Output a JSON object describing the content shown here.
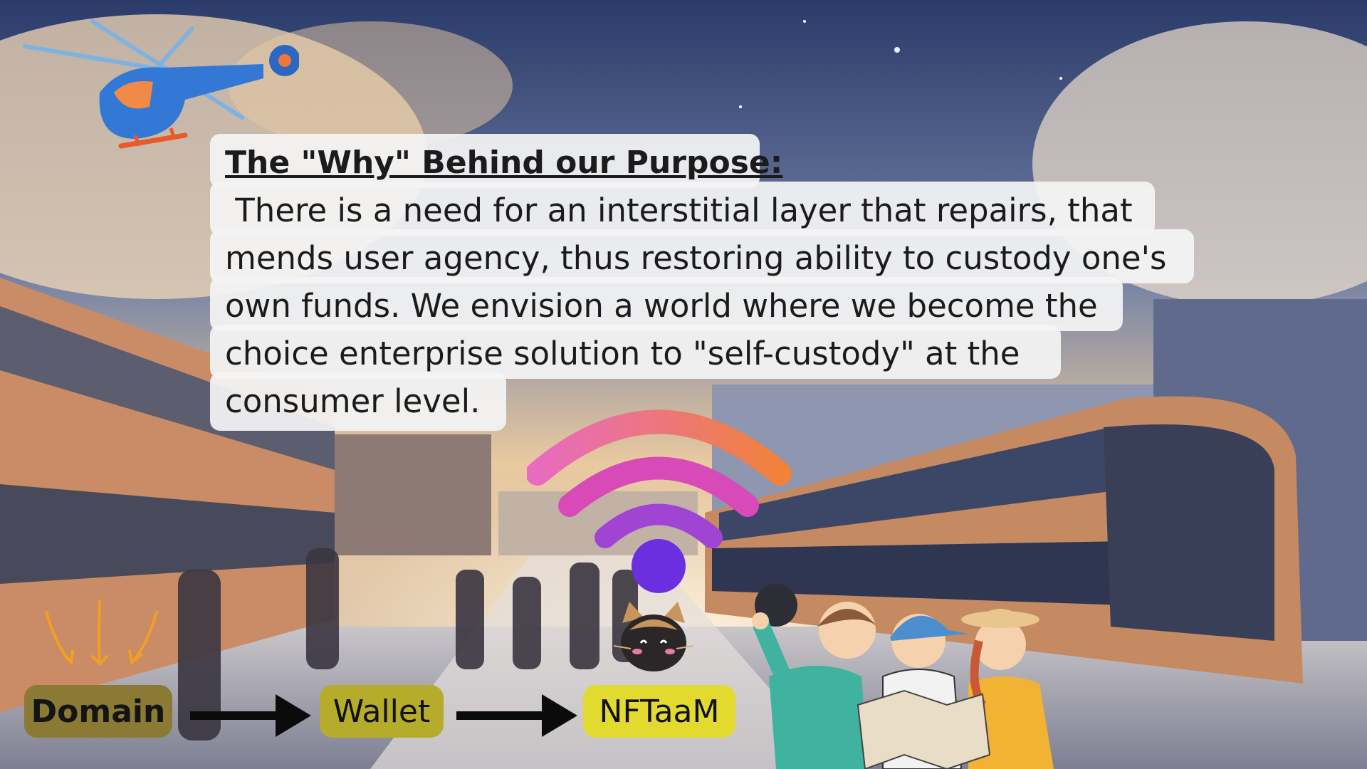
{
  "slide": {
    "heading": "The \"Why\" Behind our Purpose:",
    "body_lines": [
      " There is a need for an interstitial layer that repairs, that",
      "mends user agency, thus restoring ability to custody one's",
      "own funds. We envision a world where we become the",
      "choice enterprise solution to \"self-custody\" at the",
      "consumer level."
    ]
  },
  "flow": {
    "steps": [
      "Domain",
      "Wallet",
      "NFTaaM"
    ],
    "colors": {
      "domain": "#8a7a34",
      "wallet": "#b6ac2c",
      "nftaam": "#e3da2f"
    }
  },
  "icons": [
    "helicopter-icon",
    "wifi-icon",
    "cat-icon",
    "down-arrows-icon",
    "right-arrow-icon",
    "travelers-illustration"
  ]
}
